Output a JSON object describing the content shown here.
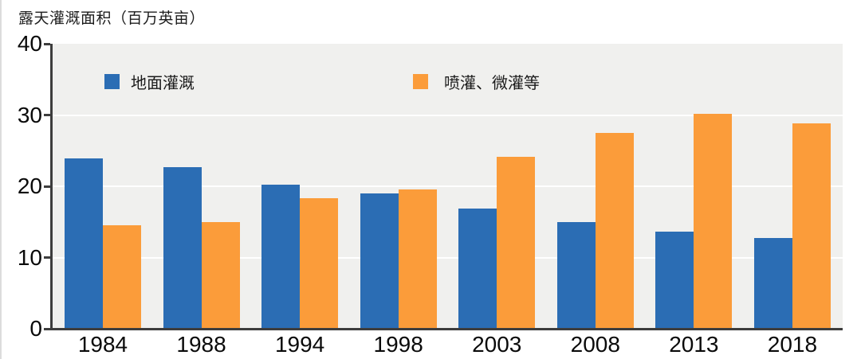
{
  "title": "露天灌溉面积（百万英亩）",
  "legend": {
    "items": [
      {
        "label": "地面灌溉",
        "color": "#2b6db4"
      },
      {
        "label": "喷灌、微灌等",
        "color": "#fb9c3a"
      }
    ]
  },
  "colors": {
    "series_surface": "#2b6db4",
    "series_sprinkler": "#fb9c3a",
    "plot_background": "#f0f0ee",
    "gridline": "#ffffff",
    "axis": "#3d3d3d"
  },
  "chart_data": {
    "type": "bar",
    "title": "露天灌溉面积（百万英亩）",
    "categories": [
      "1984",
      "1988",
      "1994",
      "1998",
      "2003",
      "2008",
      "2013",
      "2018"
    ],
    "series": [
      {
        "name": "地面灌溉",
        "color": "#2b6db4",
        "values": [
          23.9,
          22.7,
          20.2,
          19.0,
          16.9,
          15.0,
          13.6,
          12.7
        ]
      },
      {
        "name": "喷灌、微灌等",
        "color": "#fb9c3a",
        "values": [
          14.5,
          15.0,
          18.3,
          19.5,
          24.1,
          27.5,
          30.2,
          28.8
        ]
      }
    ],
    "xlabel": "",
    "ylabel": "露天灌溉面积（百万英亩）",
    "ylim": [
      0,
      40
    ],
    "yticks": [
      0,
      10,
      20,
      30,
      40
    ],
    "grid": true,
    "gridlines_at": [
      10,
      20,
      30
    ],
    "legend_position": "top-inside"
  }
}
